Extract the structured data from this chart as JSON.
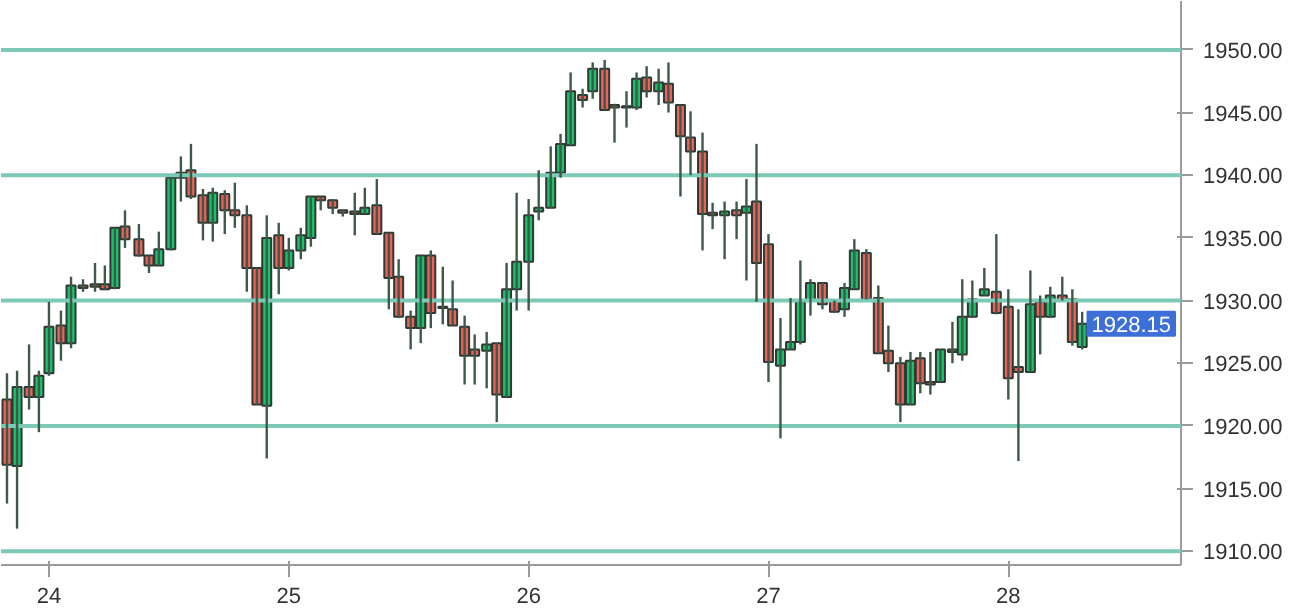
{
  "chart_data": {
    "type": "candlestick",
    "x": [
      23.825,
      23.867,
      23.917,
      23.958,
      24.0,
      24.05,
      24.092,
      24.142,
      24.192,
      24.233,
      24.275,
      24.317,
      24.375,
      24.417,
      24.458,
      24.508,
      24.55,
      24.592,
      24.642,
      24.683,
      24.733,
      24.775,
      24.825,
      24.867,
      24.908,
      24.958,
      25.0,
      25.05,
      25.092,
      25.133,
      25.183,
      25.225,
      25.275,
      25.317,
      25.367,
      25.417,
      25.458,
      25.508,
      25.55,
      25.592,
      25.642,
      25.683,
      25.733,
      25.775,
      25.825,
      25.867,
      25.908,
      25.95,
      26.0,
      26.042,
      26.092,
      26.133,
      26.175,
      26.225,
      26.267,
      26.317,
      26.358,
      26.408,
      26.45,
      26.492,
      26.542,
      26.583,
      26.633,
      26.675,
      26.725,
      26.767,
      26.817,
      26.867,
      26.908,
      26.95,
      27.0,
      27.05,
      27.092,
      27.133,
      27.175,
      27.225,
      27.275,
      27.317,
      27.358,
      27.408,
      27.458,
      27.5,
      27.55,
      27.592,
      27.633,
      27.675,
      27.717,
      27.767,
      27.808,
      27.85,
      27.9,
      27.95,
      28.0,
      28.042,
      28.092,
      28.133,
      28.175,
      28.225,
      28.267,
      28.308
    ],
    "ohlc": [
      [
        1922.1,
        1924.2,
        1913.8,
        1916.9
      ],
      [
        1916.8,
        1924.4,
        1911.8,
        1923.1
      ],
      [
        1923.1,
        1926.5,
        1921.3,
        1922.3
      ],
      [
        1922.3,
        1924.4,
        1919.5,
        1924.0
      ],
      [
        1924.2,
        1929.9,
        1924.0,
        1927.9
      ],
      [
        1928.0,
        1929.2,
        1925.2,
        1926.6
      ],
      [
        1926.6,
        1931.9,
        1926.2,
        1931.2
      ],
      [
        1931.2,
        1931.7,
        1930.7,
        1931.0
      ],
      [
        1931.3,
        1933.0,
        1930.7,
        1931.1
      ],
      [
        1931.3,
        1932.8,
        1930.9,
        1930.9
      ],
      [
        1931.0,
        1935.8,
        1930.9,
        1935.8
      ],
      [
        1935.9,
        1937.2,
        1934.2,
        1934.9
      ],
      [
        1934.9,
        1936.1,
        1933.5,
        1933.6
      ],
      [
        1933.6,
        1933.6,
        1932.2,
        1932.8
      ],
      [
        1932.8,
        1935.5,
        1932.8,
        1934.1
      ],
      [
        1934.1,
        1939.8,
        1934.0,
        1939.8
      ],
      [
        1939.8,
        1941.5,
        1937.9,
        1940.2
      ],
      [
        1940.4,
        1942.5,
        1938.1,
        1938.3
      ],
      [
        1938.4,
        1938.9,
        1934.8,
        1936.2
      ],
      [
        1936.2,
        1939.0,
        1934.7,
        1938.6
      ],
      [
        1938.5,
        1938.8,
        1935.3,
        1937.2
      ],
      [
        1937.2,
        1939.4,
        1935.8,
        1936.8
      ],
      [
        1936.8,
        1937.6,
        1930.7,
        1932.6
      ],
      [
        1932.6,
        1932.6,
        1921.7,
        1921.7
      ],
      [
        1921.6,
        1936.8,
        1917.4,
        1935.0
      ],
      [
        1935.2,
        1936.2,
        1930.5,
        1932.6
      ],
      [
        1932.6,
        1935.0,
        1932.4,
        1934.0
      ],
      [
        1934.0,
        1935.8,
        1933.3,
        1935.2
      ],
      [
        1935.0,
        1938.3,
        1934.3,
        1938.3
      ],
      [
        1938.3,
        1938.3,
        1937.2,
        1938.0
      ],
      [
        1938.0,
        1938.1,
        1936.9,
        1937.4
      ],
      [
        1937.2,
        1937.2,
        1936.7,
        1937.0
      ],
      [
        1937.1,
        1938.6,
        1935.2,
        1936.9
      ],
      [
        1936.9,
        1939.0,
        1936.9,
        1937.4
      ],
      [
        1937.6,
        1939.7,
        1935.3,
        1935.3
      ],
      [
        1935.4,
        1935.4,
        1929.3,
        1931.8
      ],
      [
        1931.9,
        1933.3,
        1928.6,
        1928.7
      ],
      [
        1928.7,
        1929.2,
        1926.1,
        1927.8
      ],
      [
        1927.8,
        1933.6,
        1926.6,
        1933.6
      ],
      [
        1933.6,
        1934.0,
        1927.8,
        1929.0
      ],
      [
        1929.5,
        1932.7,
        1928.1,
        1929.4
      ],
      [
        1929.3,
        1931.6,
        1928.0,
        1928.0
      ],
      [
        1927.9,
        1928.8,
        1923.3,
        1925.6
      ],
      [
        1926.1,
        1927.3,
        1923.3,
        1925.6
      ],
      [
        1926.0,
        1927.5,
        1923.0,
        1926.5
      ],
      [
        1926.6,
        1926.6,
        1920.3,
        1922.5
      ],
      [
        1922.3,
        1933.0,
        1922.3,
        1930.9
      ],
      [
        1930.9,
        1938.6,
        1929.2,
        1933.1
      ],
      [
        1933.1,
        1938.1,
        1929.2,
        1936.8
      ],
      [
        1937.1,
        1940.4,
        1936.4,
        1937.4
      ],
      [
        1937.4,
        1942.3,
        1937.4,
        1940.2
      ],
      [
        1940.2,
        1943.3,
        1939.8,
        1942.5
      ],
      [
        1942.4,
        1948.2,
        1942.4,
        1946.7
      ],
      [
        1946.4,
        1946.9,
        1945.4,
        1946.0
      ],
      [
        1946.7,
        1949.0,
        1946.1,
        1948.5
      ],
      [
        1948.5,
        1949.2,
        1945.2,
        1945.2
      ],
      [
        1945.6,
        1945.7,
        1942.6,
        1945.4
      ],
      [
        1945.5,
        1946.7,
        1943.8,
        1945.4
      ],
      [
        1945.4,
        1948.2,
        1945.2,
        1947.7
      ],
      [
        1947.8,
        1948.7,
        1946.2,
        1946.7
      ],
      [
        1946.7,
        1948.5,
        1945.6,
        1947.4
      ],
      [
        1947.3,
        1949.0,
        1945.0,
        1945.8
      ],
      [
        1945.6,
        1945.6,
        1938.3,
        1943.1
      ],
      [
        1943.0,
        1945.1,
        1940.0,
        1941.9
      ],
      [
        1941.9,
        1943.4,
        1934.0,
        1936.9
      ],
      [
        1937.0,
        1937.8,
        1935.7,
        1936.8
      ],
      [
        1936.8,
        1937.9,
        1933.3,
        1937.1
      ],
      [
        1937.2,
        1937.9,
        1934.9,
        1936.8
      ],
      [
        1937.0,
        1939.7,
        1931.6,
        1937.5
      ],
      [
        1937.9,
        1942.5,
        1929.9,
        1933.0
      ],
      [
        1934.5,
        1935.3,
        1923.5,
        1925.1
      ],
      [
        1924.8,
        1928.6,
        1919.0,
        1926.1
      ],
      [
        1926.1,
        1930.2,
        1926.1,
        1926.7
      ],
      [
        1926.7,
        1933.2,
        1926.5,
        1929.9
      ],
      [
        1930.0,
        1931.7,
        1928.8,
        1931.4
      ],
      [
        1931.4,
        1931.4,
        1929.3,
        1929.7
      ],
      [
        1930.0,
        1930.0,
        1929.0,
        1929.1
      ],
      [
        1929.3,
        1931.4,
        1928.7,
        1931.0
      ],
      [
        1930.9,
        1934.9,
        1930.9,
        1934.0
      ],
      [
        1933.8,
        1934.1,
        1930.1,
        1930.1
      ],
      [
        1930.2,
        1931.2,
        1925.8,
        1925.8
      ],
      [
        1926.0,
        1928.0,
        1924.3,
        1925.0
      ],
      [
        1925.0,
        1925.5,
        1920.3,
        1921.7
      ],
      [
        1921.7,
        1925.9,
        1921.7,
        1925.2
      ],
      [
        1925.4,
        1925.9,
        1922.6,
        1923.4
      ],
      [
        1923.5,
        1925.9,
        1922.5,
        1923.3
      ],
      [
        1923.5,
        1926.1,
        1923.5,
        1926.1
      ],
      [
        1926.1,
        1928.3,
        1925.0,
        1925.9
      ],
      [
        1925.7,
        1931.7,
        1925.2,
        1928.7
      ],
      [
        1928.7,
        1931.6,
        1928.6,
        1930.1
      ],
      [
        1930.4,
        1932.6,
        1930.4,
        1930.9
      ],
      [
        1930.7,
        1935.3,
        1928.9,
        1929.0
      ],
      [
        1929.5,
        1930.9,
        1922.1,
        1923.8
      ],
      [
        1924.7,
        1929.3,
        1917.2,
        1924.3
      ],
      [
        1924.3,
        1932.4,
        1924.3,
        1929.7
      ],
      [
        1929.9,
        1930.4,
        1925.7,
        1928.7
      ],
      [
        1928.7,
        1931.1,
        1928.6,
        1930.4
      ],
      [
        1930.4,
        1931.9,
        1930.0,
        1930.0
      ],
      [
        1930.1,
        1930.9,
        1926.4,
        1926.7
      ],
      [
        1926.3,
        1929.1,
        1926.1,
        1928.15
      ]
    ],
    "xlim": [
      23.8,
      28.72
    ],
    "xticks": [
      24,
      25,
      26,
      27,
      28
    ],
    "ylim": [
      1908.9,
      1953.9
    ],
    "yticks": [
      {
        "value": 1910,
        "label": "1910.00"
      },
      {
        "value": 1915,
        "label": "1915.00"
      },
      {
        "value": 1920,
        "label": "1920.00"
      },
      {
        "value": 1925,
        "label": "1925.00"
      },
      {
        "value": 1930,
        "label": "1930.00"
      },
      {
        "value": 1935,
        "label": "1935.00"
      },
      {
        "value": 1940,
        "label": "1940.00"
      },
      {
        "value": 1945,
        "label": "1945.00"
      },
      {
        "value": 1950,
        "label": "1950.00"
      }
    ],
    "ref_lines": [
      {
        "axis": "y",
        "value": 1950,
        "color": "#7cc9b6"
      },
      {
        "axis": "y",
        "value": 1940,
        "color": "#7cc9b6"
      },
      {
        "axis": "y",
        "value": 1930,
        "color": "#7cc9b6"
      },
      {
        "axis": "y",
        "value": 1920,
        "color": "#7cc9b6"
      },
      {
        "axis": "y",
        "value": 1910,
        "color": "#7cc9b6"
      }
    ],
    "annotations": [
      "1928.15"
    ],
    "grid": false
  }
}
